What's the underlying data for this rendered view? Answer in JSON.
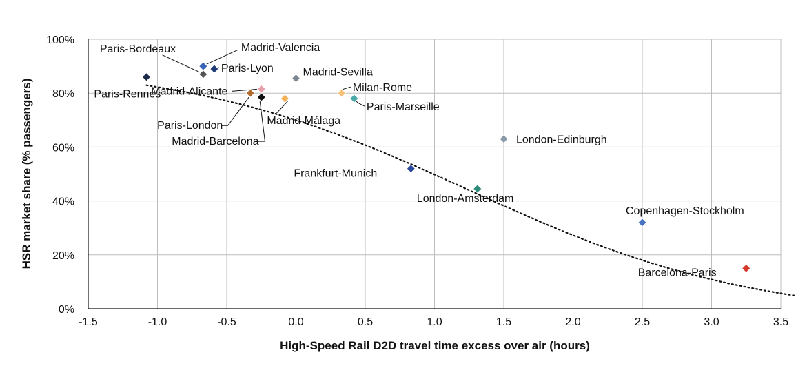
{
  "chart_data": {
    "type": "scatter",
    "xlabel": "High-Speed Rail D2D travel time excess over air (hours)",
    "ylabel": "HSR market share (% passengers)",
    "xlim": [
      -1.5,
      3.5
    ],
    "ylim": [
      0,
      100
    ],
    "x_ticks": [
      "-1.5",
      "-1.0",
      "-0.5",
      "0.0",
      "0.5",
      "1.0",
      "1.5",
      "2.0",
      "2.5",
      "3.0",
      "3.5"
    ],
    "y_ticks": [
      "0%",
      "20%",
      "40%",
      "60%",
      "80%",
      "100%"
    ],
    "grid": true,
    "trendline": "dotted",
    "points": [
      {
        "label": "Paris-Rennes",
        "x": -1.08,
        "y": 86,
        "color": "#1c2b4a"
      },
      {
        "label": "Paris-Bordeaux",
        "x": -0.67,
        "y": 87,
        "color": "#555555"
      },
      {
        "label": "Madrid-Valencia",
        "x": -0.67,
        "y": 90,
        "color": "#3a64b6"
      },
      {
        "label": "Paris-Lyon",
        "x": -0.59,
        "y": 89,
        "color": "#1f3c78"
      },
      {
        "label": "Madrid-Sevilla",
        "x": 0.0,
        "y": 85.5,
        "color": "#7c8794"
      },
      {
        "label": "Madrid-Alicante",
        "x": -0.25,
        "y": 81.5,
        "color": "#e8a0a8"
      },
      {
        "label": "Paris-London",
        "x": -0.33,
        "y": 80,
        "color": "#b06a2c"
      },
      {
        "label": "Madrid-Barcelona",
        "x": -0.25,
        "y": 78.5,
        "color": "#111111"
      },
      {
        "label": "Madrid-Málaga",
        "x": -0.08,
        "y": 78,
        "color": "#f2b15a"
      },
      {
        "label": "Milan-Rome",
        "x": 0.33,
        "y": 80,
        "color": "#f6c27a"
      },
      {
        "label": "Paris-Marseille",
        "x": 0.42,
        "y": 78,
        "color": "#4aa8a8"
      },
      {
        "label": "London-Edinburgh",
        "x": 1.5,
        "y": 63,
        "color": "#8c99a6"
      },
      {
        "label": "Frankfurt-Munich",
        "x": 0.83,
        "y": 52,
        "color": "#2b4a9a"
      },
      {
        "label": "London-Amsterdam",
        "x": 1.31,
        "y": 44.5,
        "color": "#2e8a7a"
      },
      {
        "label": "Copenhagen-Stockholm",
        "x": 2.5,
        "y": 32,
        "color": "#4a72c4"
      },
      {
        "label": "Barcelona-Paris",
        "x": 3.25,
        "y": 15,
        "color": "#d6392c"
      }
    ]
  }
}
